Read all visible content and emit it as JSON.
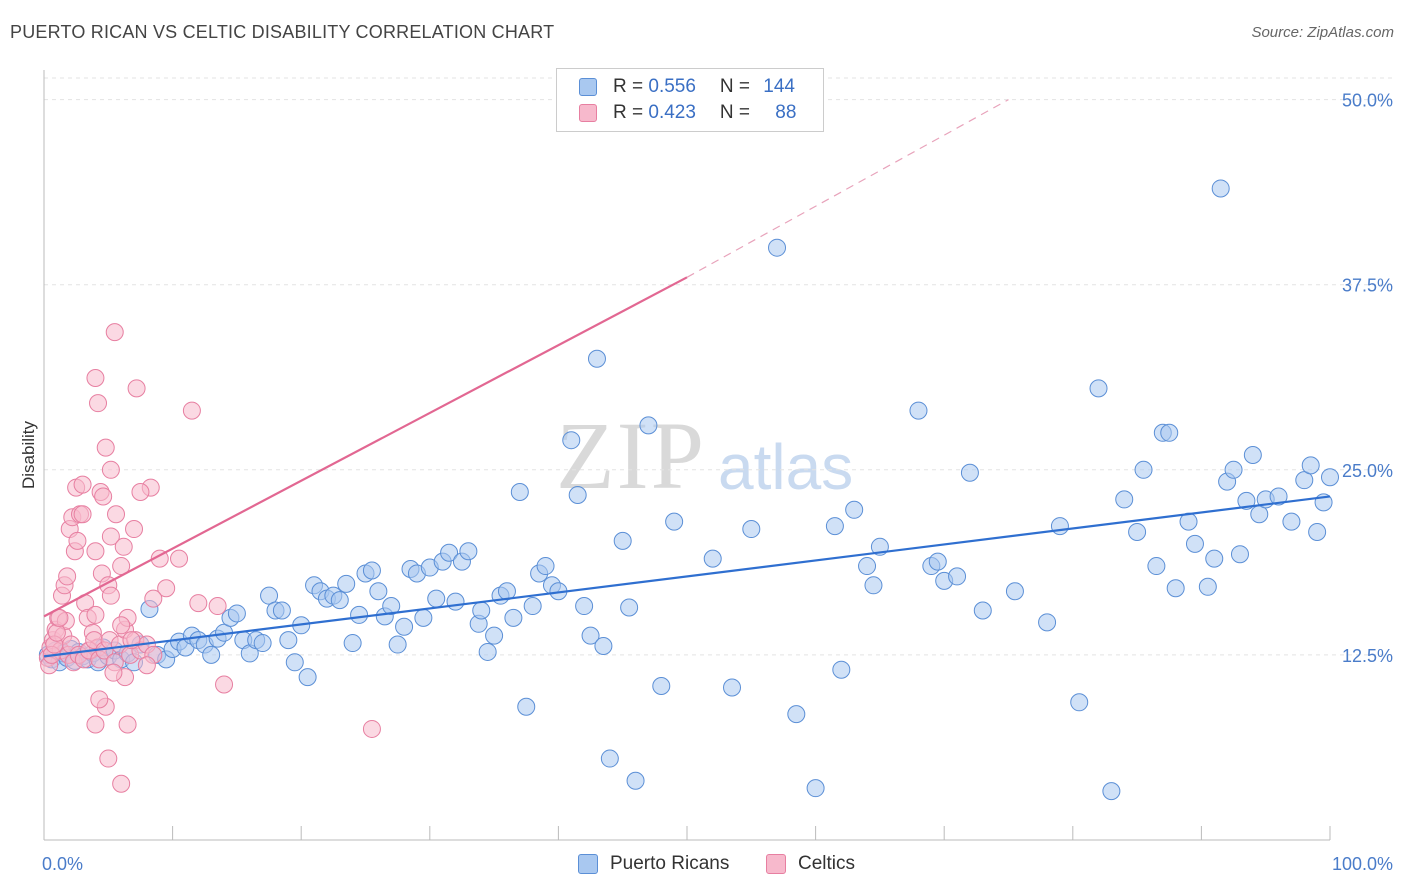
{
  "title": "PUERTO RICAN VS CELTIC DISABILITY CORRELATION CHART",
  "source": "Source: ZipAtlas.com",
  "watermark": {
    "zip": "ZIP",
    "atlas": "atlas"
  },
  "legend": {
    "rows": [
      {
        "r_label": "R = ",
        "r_value": "0.556",
        "n_label": "N = ",
        "n_value": "144",
        "color": "#a9c8f0",
        "border": "#5b8fd6"
      },
      {
        "r_label": "R = ",
        "r_value": "0.423",
        "n_label": "N = ",
        "n_value": "88",
        "color": "#f7b9cc",
        "border": "#e77fa1"
      }
    ]
  },
  "bottom_legend": [
    {
      "label": "Puerto Ricans",
      "color": "#a9c8f0",
      "border": "#5b8fd6"
    },
    {
      "label": "Celtics",
      "color": "#f7b9cc",
      "border": "#e77fa1"
    }
  ],
  "chart_data": {
    "type": "scatter",
    "ylabel": "Disability",
    "xlabel": "",
    "xlim": [
      0,
      100
    ],
    "ylim": [
      0,
      52
    ],
    "x_tick_labels": {
      "left": "0.0%",
      "right": "100.0%"
    },
    "y_ticks": [
      {
        "value": 12.5,
        "label": "12.5%"
      },
      {
        "value": 25.0,
        "label": "25.0%"
      },
      {
        "value": 37.5,
        "label": "37.5%"
      },
      {
        "value": 50.0,
        "label": "50.0%"
      }
    ],
    "grid": true,
    "series": [
      {
        "name": "Puerto Ricans",
        "color": "#5b8fd6",
        "fill": "#a9c8f0",
        "trend": {
          "x0": 0,
          "y0": 12.4,
          "x1": 100,
          "y1": 23.2
        },
        "points": [
          [
            0.3,
            12.5
          ],
          [
            0.6,
            12.2
          ],
          [
            0.9,
            12.8
          ],
          [
            1.2,
            12.0
          ],
          [
            1.5,
            12.6
          ],
          [
            1.8,
            12.3
          ],
          [
            2.1,
            12.9
          ],
          [
            2.4,
            12.1
          ],
          [
            2.7,
            12.7
          ],
          [
            3.0,
            12.4
          ],
          [
            3.4,
            12.2
          ],
          [
            3.8,
            12.6
          ],
          [
            4.2,
            12.0
          ],
          [
            4.6,
            13.0
          ],
          [
            5.0,
            12.4
          ],
          [
            5.5,
            12.8
          ],
          [
            6.0,
            12.2
          ],
          [
            6.5,
            12.6
          ],
          [
            7.0,
            12.0
          ],
          [
            7.5,
            13.2
          ],
          [
            8.2,
            15.6
          ],
          [
            8.8,
            12.5
          ],
          [
            9.5,
            12.2
          ],
          [
            10.0,
            12.9
          ],
          [
            10.5,
            13.4
          ],
          [
            11.0,
            13.0
          ],
          [
            11.5,
            13.8
          ],
          [
            12.0,
            13.5
          ],
          [
            12.5,
            13.2
          ],
          [
            13.0,
            12.5
          ],
          [
            13.5,
            13.6
          ],
          [
            14.0,
            14.0
          ],
          [
            14.5,
            15.0
          ],
          [
            15.0,
            15.3
          ],
          [
            15.5,
            13.5
          ],
          [
            16.0,
            12.6
          ],
          [
            16.5,
            13.5
          ],
          [
            17.0,
            13.3
          ],
          [
            17.5,
            16.5
          ],
          [
            18.0,
            15.5
          ],
          [
            18.5,
            15.5
          ],
          [
            19.0,
            13.5
          ],
          [
            19.5,
            12.0
          ],
          [
            20.0,
            14.5
          ],
          [
            20.5,
            11.0
          ],
          [
            21.0,
            17.2
          ],
          [
            21.5,
            16.8
          ],
          [
            22.0,
            16.3
          ],
          [
            22.5,
            16.5
          ],
          [
            23.0,
            16.2
          ],
          [
            23.5,
            17.3
          ],
          [
            24.0,
            13.3
          ],
          [
            24.5,
            15.2
          ],
          [
            25.0,
            18.0
          ],
          [
            25.5,
            18.2
          ],
          [
            26.0,
            16.8
          ],
          [
            26.5,
            15.1
          ],
          [
            27.0,
            15.8
          ],
          [
            27.5,
            13.2
          ],
          [
            28.0,
            14.4
          ],
          [
            28.5,
            18.3
          ],
          [
            29.0,
            18.0
          ],
          [
            29.5,
            15.0
          ],
          [
            30.0,
            18.4
          ],
          [
            30.5,
            16.3
          ],
          [
            31.0,
            18.8
          ],
          [
            31.5,
            19.4
          ],
          [
            32.0,
            16.1
          ],
          [
            32.5,
            18.8
          ],
          [
            33.0,
            19.5
          ],
          [
            33.8,
            14.6
          ],
          [
            34.0,
            15.5
          ],
          [
            34.5,
            12.7
          ],
          [
            35.0,
            13.8
          ],
          [
            35.5,
            16.5
          ],
          [
            36.0,
            16.8
          ],
          [
            36.5,
            15.0
          ],
          [
            37.0,
            23.5
          ],
          [
            37.5,
            9.0
          ],
          [
            38.0,
            15.8
          ],
          [
            38.5,
            18.0
          ],
          [
            39.0,
            18.5
          ],
          [
            39.5,
            17.2
          ],
          [
            40.0,
            16.8
          ],
          [
            41.0,
            27.0
          ],
          [
            41.5,
            23.3
          ],
          [
            42.0,
            15.8
          ],
          [
            42.5,
            13.8
          ],
          [
            43.0,
            32.5
          ],
          [
            43.5,
            13.1
          ],
          [
            44.0,
            5.5
          ],
          [
            45.0,
            20.2
          ],
          [
            45.5,
            15.7
          ],
          [
            46.0,
            4.0
          ],
          [
            47.0,
            28.0
          ],
          [
            48.0,
            10.4
          ],
          [
            49.0,
            21.5
          ],
          [
            52.0,
            19.0
          ],
          [
            53.5,
            10.3
          ],
          [
            55.0,
            21.0
          ],
          [
            57.0,
            40.0
          ],
          [
            58.5,
            8.5
          ],
          [
            60.0,
            3.5
          ],
          [
            61.5,
            21.2
          ],
          [
            62.0,
            11.5
          ],
          [
            63.0,
            22.3
          ],
          [
            64.0,
            18.5
          ],
          [
            64.5,
            17.2
          ],
          [
            65.0,
            19.8
          ],
          [
            68.0,
            29.0
          ],
          [
            69.0,
            18.5
          ],
          [
            69.5,
            18.8
          ],
          [
            70.0,
            17.5
          ],
          [
            71.0,
            17.8
          ],
          [
            72.0,
            24.8
          ],
          [
            73.0,
            15.5
          ],
          [
            75.5,
            16.8
          ],
          [
            78.0,
            14.7
          ],
          [
            79.0,
            21.2
          ],
          [
            80.5,
            9.3
          ],
          [
            82.0,
            30.5
          ],
          [
            83.0,
            3.3
          ],
          [
            84.0,
            23.0
          ],
          [
            85.0,
            20.8
          ],
          [
            85.5,
            25.0
          ],
          [
            86.5,
            18.5
          ],
          [
            87.0,
            27.5
          ],
          [
            87.5,
            27.5
          ],
          [
            88.0,
            17.0
          ],
          [
            89.0,
            21.5
          ],
          [
            89.5,
            20.0
          ],
          [
            90.5,
            17.1
          ],
          [
            91.0,
            19.0
          ],
          [
            91.5,
            44.0
          ],
          [
            92.0,
            24.2
          ],
          [
            92.5,
            25.0
          ],
          [
            93.0,
            19.3
          ],
          [
            93.5,
            22.9
          ],
          [
            94.0,
            26.0
          ],
          [
            94.5,
            22.0
          ],
          [
            95.0,
            23.0
          ],
          [
            96.0,
            23.2
          ],
          [
            97.0,
            21.5
          ],
          [
            98.0,
            24.3
          ],
          [
            98.5,
            25.3
          ],
          [
            99.0,
            20.8
          ],
          [
            100.0,
            24.5
          ],
          [
            99.5,
            22.8
          ]
        ]
      },
      {
        "name": "Celtics",
        "color": "#e77fa1",
        "fill": "#f7b9cc",
        "trend": {
          "x0": 0,
          "y0": 15.1,
          "x1": 50,
          "y1": 38.0,
          "x_ext": 75,
          "y_ext": 50.0
        },
        "points": [
          [
            0.3,
            12.3
          ],
          [
            0.5,
            13.0
          ],
          [
            0.7,
            13.5
          ],
          [
            0.9,
            14.2
          ],
          [
            1.1,
            15.0
          ],
          [
            1.3,
            12.8
          ],
          [
            1.5,
            13.8
          ],
          [
            1.7,
            14.8
          ],
          [
            1.9,
            12.5
          ],
          [
            2.1,
            13.2
          ],
          [
            0.4,
            11.8
          ],
          [
            0.6,
            12.5
          ],
          [
            0.8,
            13.2
          ],
          [
            1.0,
            14.0
          ],
          [
            1.2,
            15.0
          ],
          [
            1.4,
            16.5
          ],
          [
            1.6,
            17.2
          ],
          [
            1.8,
            17.8
          ],
          [
            2.0,
            21.0
          ],
          [
            2.2,
            21.8
          ],
          [
            2.4,
            19.5
          ],
          [
            2.6,
            20.2
          ],
          [
            2.8,
            22.0
          ],
          [
            3.0,
            22.0
          ],
          [
            3.2,
            16.0
          ],
          [
            3.4,
            15.0
          ],
          [
            3.6,
            12.8
          ],
          [
            3.8,
            14.0
          ],
          [
            4.0,
            15.2
          ],
          [
            4.2,
            13.0
          ],
          [
            2.5,
            23.8
          ],
          [
            3.0,
            24.0
          ],
          [
            4.0,
            19.5
          ],
          [
            4.5,
            18.0
          ],
          [
            5.0,
            17.2
          ],
          [
            4.4,
            23.5
          ],
          [
            4.6,
            23.2
          ],
          [
            5.2,
            20.5
          ],
          [
            5.6,
            22.0
          ],
          [
            6.2,
            19.8
          ],
          [
            2.3,
            12.0
          ],
          [
            2.7,
            12.5
          ],
          [
            3.1,
            12.2
          ],
          [
            3.5,
            12.8
          ],
          [
            3.9,
            13.5
          ],
          [
            4.3,
            12.2
          ],
          [
            4.7,
            12.8
          ],
          [
            5.1,
            13.5
          ],
          [
            5.5,
            12.0
          ],
          [
            5.9,
            13.2
          ],
          [
            6.3,
            14.2
          ],
          [
            6.7,
            12.5
          ],
          [
            7.1,
            13.5
          ],
          [
            7.5,
            12.8
          ],
          [
            8.0,
            13.2
          ],
          [
            8.5,
            12.5
          ],
          [
            4.8,
            26.5
          ],
          [
            5.2,
            25.0
          ],
          [
            4.2,
            29.5
          ],
          [
            4.0,
            31.2
          ],
          [
            5.5,
            34.3
          ],
          [
            7.2,
            30.5
          ],
          [
            8.3,
            23.8
          ],
          [
            9.0,
            19.0
          ],
          [
            9.5,
            17.0
          ],
          [
            10.5,
            19.0
          ],
          [
            11.5,
            29.0
          ],
          [
            8.5,
            16.3
          ],
          [
            7.0,
            21.0
          ],
          [
            6.0,
            18.5
          ],
          [
            6.5,
            15.0
          ],
          [
            7.5,
            23.5
          ],
          [
            12.0,
            16.0
          ],
          [
            13.5,
            15.8
          ],
          [
            14.0,
            10.5
          ],
          [
            6.0,
            14.5
          ],
          [
            5.2,
            16.5
          ],
          [
            4.8,
            9.0
          ],
          [
            4.3,
            9.5
          ],
          [
            4.0,
            7.8
          ],
          [
            5.0,
            5.5
          ],
          [
            6.5,
            7.8
          ],
          [
            6.0,
            3.8
          ],
          [
            6.3,
            11.0
          ],
          [
            5.4,
            11.3
          ],
          [
            25.5,
            7.5
          ],
          [
            8.0,
            11.8
          ],
          [
            6.8,
            13.5
          ]
        ]
      }
    ]
  }
}
